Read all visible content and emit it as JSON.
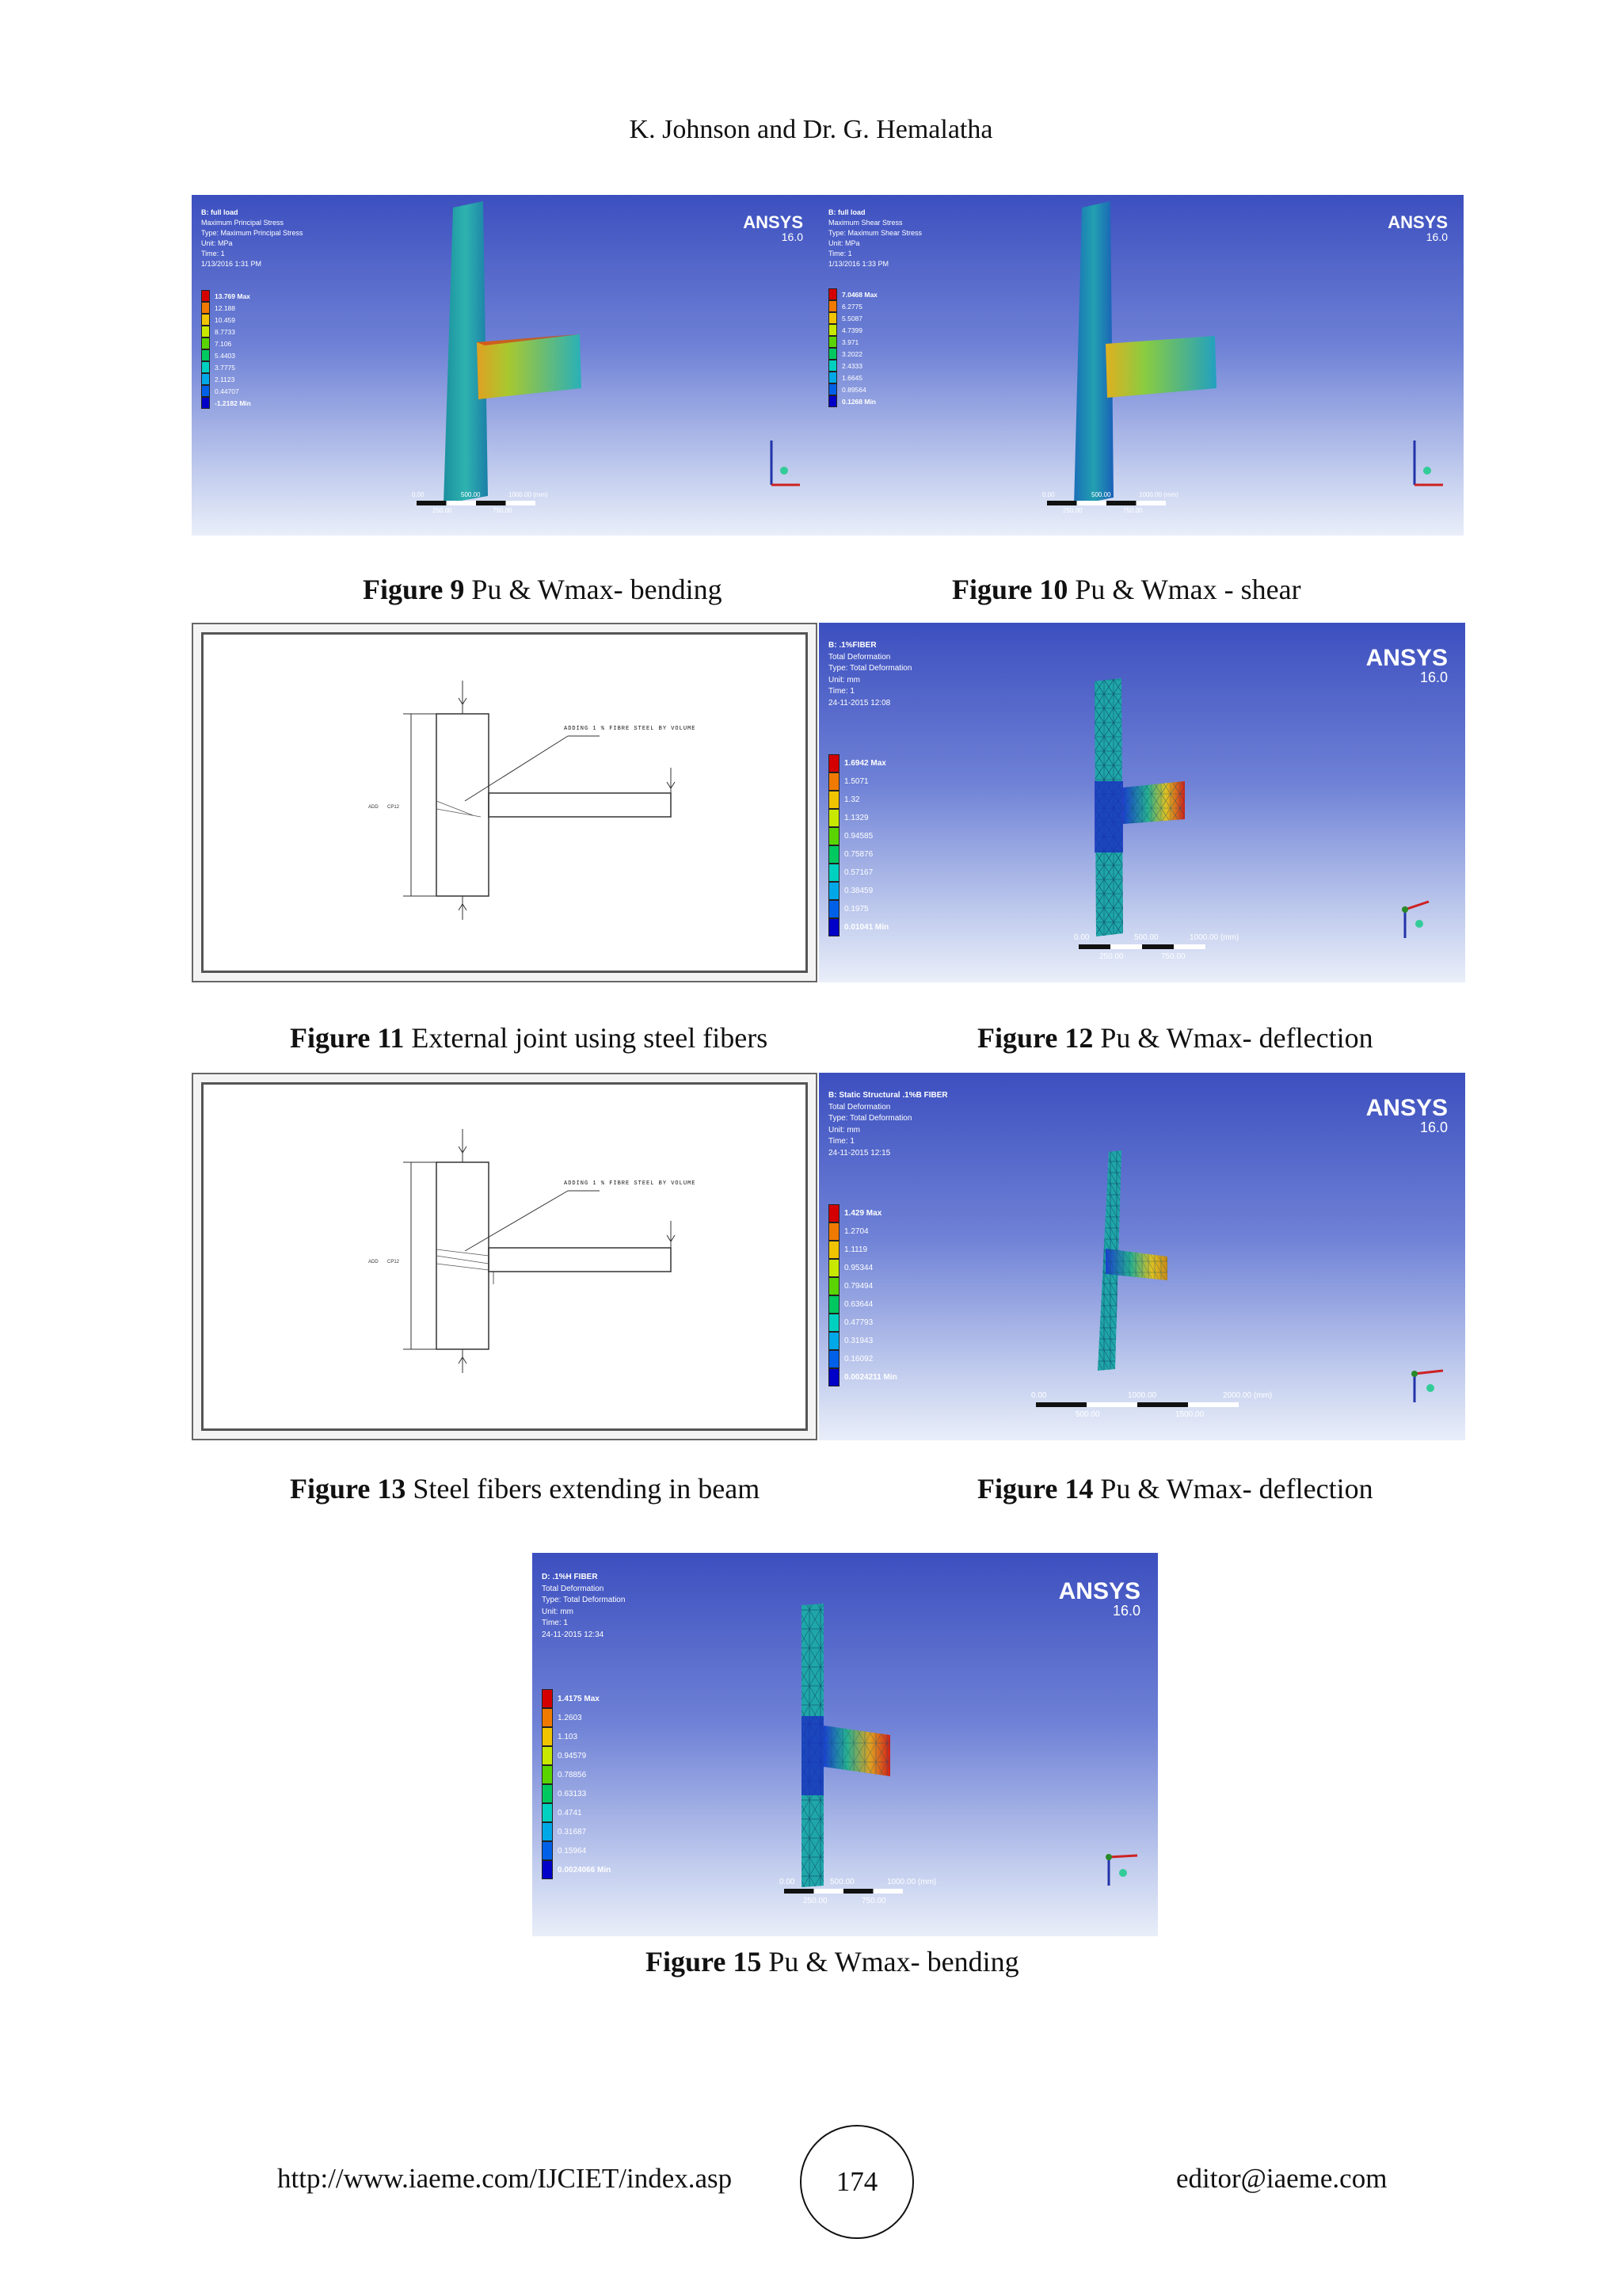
{
  "header": {
    "running_head": "K. Johnson and Dr. G. Hemalatha"
  },
  "colors": {
    "ansys_bg_top": "#3c4fbf",
    "ansys_bg_bottom": "#e9eef9",
    "legend_max": "#d40000",
    "legend_min": "#0000c8"
  },
  "figures": {
    "fig9": {
      "caption_bold": "Figure 9",
      "caption_rest": " Pu & Wmax- bending",
      "logo": "ANSYS",
      "version": "16.0",
      "info": [
        "B: full load",
        "Maximum Principal Stress",
        "Type: Maximum Principal Stress",
        "Unit: MPa",
        "Time: 1",
        "1/13/2016 1:31 PM"
      ],
      "legend": [
        "13.769 Max",
        "12.188",
        "10.459",
        "8.7733",
        "7.106",
        "5.4403",
        "3.7775",
        "2.1123",
        "0.44707",
        "-1.2182 Min"
      ],
      "scale_top": [
        "0.00",
        "500.00",
        "1000.00 (mm)"
      ],
      "scale_bottom": [
        "250.00",
        "750.00"
      ]
    },
    "fig10": {
      "caption_bold": "Figure 10",
      "caption_rest": " Pu & Wmax - shear",
      "logo": "ANSYS",
      "version": "16.0",
      "info": [
        "B: full load",
        "Maximum Shear Stress",
        "Type: Maximum Shear Stress",
        "Unit: MPa",
        "Time: 1",
        "1/13/2016 1:33 PM"
      ],
      "legend": [
        "7.0468 Max",
        "6.2775",
        "5.5087",
        "4.7399",
        "3.971",
        "3.2022",
        "2.4333",
        "1.6645",
        "0.89564",
        "0.1268 Min"
      ],
      "scale_top": [
        "0.00",
        "500.00",
        "1000.00 (mm)"
      ],
      "scale_bottom": [
        "250.00",
        "750.00"
      ]
    },
    "fig11": {
      "caption_bold": "Figure 11",
      "caption_rest": " External joint using steel fibers",
      "note": "ADDING 1 % FIBRE STEEL BY VOLUME"
    },
    "fig12": {
      "caption_bold": "Figure 12",
      "caption_rest": " Pu & Wmax- deflection",
      "logo": "ANSYS",
      "version": "16.0",
      "info": [
        "B: .1%FIBER",
        "Total Deformation",
        "Type: Total Deformation",
        "Unit: mm",
        "Time: 1",
        "24-11-2015 12:08"
      ],
      "legend": [
        "1.6942 Max",
        "1.5071",
        "1.32",
        "1.1329",
        "0.94585",
        "0.75876",
        "0.57167",
        "0.38459",
        "0.1975",
        "0.01041 Min"
      ],
      "scale_top": [
        "0.00",
        "500.00",
        "1000.00 (mm)"
      ],
      "scale_bottom": [
        "250.00",
        "750.00"
      ]
    },
    "fig13": {
      "caption_bold": "Figure 13",
      "caption_rest": " Steel fibers extending in beam",
      "note": "ADDING 1 % FIBRE STEEL BY VOLUME"
    },
    "fig14": {
      "caption_bold": "Figure 14",
      "caption_rest": " Pu & Wmax- deflection",
      "logo": "ANSYS",
      "version": "16.0",
      "info": [
        "B: Static Structural .1%B FIBER",
        "Total Deformation",
        "Type: Total Deformation",
        "Unit: mm",
        "Time: 1",
        "24-11-2015 12:15"
      ],
      "legend": [
        "1.429 Max",
        "1.2704",
        "1.1119",
        "0.95344",
        "0.79494",
        "0.63644",
        "0.47793",
        "0.31943",
        "0.16092",
        "0.0024211 Min"
      ],
      "scale_top": [
        "0.00",
        "1000.00",
        "2000.00 (mm)"
      ],
      "scale_bottom": [
        "500.00",
        "1500.00"
      ]
    },
    "fig15": {
      "caption_bold": "Figure 15",
      "caption_rest": " Pu & Wmax- bending",
      "logo": "ANSYS",
      "version": "16.0",
      "info": [
        "D: .1%H FIBER",
        "Total Deformation",
        "Type: Total Deformation",
        "Unit: mm",
        "Time: 1",
        "24-11-2015 12:34"
      ],
      "legend": [
        "1.4175 Max",
        "1.2603",
        "1.103",
        "0.94579",
        "0.78856",
        "0.63133",
        "0.4741",
        "0.31687",
        "0.15964",
        "0.0024066 Min"
      ],
      "scale_top": [
        "0.00",
        "500.00",
        "1000.00 (mm)"
      ],
      "scale_bottom": [
        "250.00",
        "750.00"
      ]
    }
  },
  "footer": {
    "url": "http://www.iaeme.com/IJCIET/index.asp",
    "page": "174",
    "email": "editor@iaeme.com"
  }
}
